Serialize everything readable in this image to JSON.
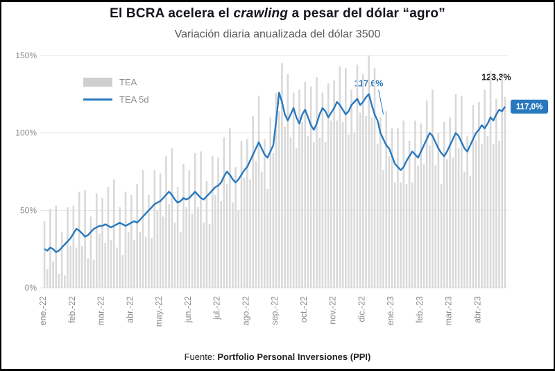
{
  "title": {
    "pre": "El BCRA acelera el ",
    "italic": "crawling",
    "post": " a pesar del dólar “agro”"
  },
  "subtitle": "Variación diaria anualizada del dólar 3500",
  "legend": {
    "bar_label": "TEA",
    "line_label": "TEA 5d"
  },
  "footer": {
    "prefix": "Fuente: ",
    "source": "Portfolio Personal Inversiones (PPI)"
  },
  "colors": {
    "line": "#2878be",
    "bar": "#d9d9d9",
    "grid": "#e4e4e4",
    "axis_text": "#8c8c8c",
    "annotation_dark": "#1a1a1a"
  },
  "chart_data": {
    "type": "bar",
    "combo": "bar+line",
    "title": "Variación diaria anualizada del dólar 3500",
    "xlabel": "",
    "ylabel": "",
    "ylim": [
      0,
      150
    ],
    "grid": true,
    "legend_position": "top-left-inside",
    "yticks": [
      {
        "v": 0,
        "label": "0%"
      },
      {
        "v": 50,
        "label": "50%"
      },
      {
        "v": 100,
        "label": "100%"
      },
      {
        "v": 150,
        "label": "150%"
      }
    ],
    "categories": [
      "ene.-22",
      "feb.-22",
      "mar.-22",
      "abr.-22",
      "may.-22",
      "jun.-22",
      "jul.-22",
      "ago.-22",
      "sep.-22",
      "oct.-22",
      "nov.-22",
      "dic.-22",
      "ene.-23",
      "feb.-23",
      "mar.-23",
      "abr.-23"
    ],
    "series": [
      {
        "name": "TEA",
        "type": "bar",
        "color": "#d9d9d9",
        "values": [
          43,
          12,
          51,
          17,
          53,
          9,
          36,
          8,
          52,
          27,
          53,
          26,
          62,
          27,
          63,
          19,
          46,
          18,
          61,
          35,
          58,
          29,
          65,
          31,
          70,
          26,
          52,
          21,
          62,
          36,
          60,
          31,
          67,
          36,
          76,
          33,
          60,
          32,
          76,
          50,
          74,
          46,
          85,
          54,
          90,
          42,
          65,
          36,
          80,
          52,
          76,
          48,
          87,
          52,
          88,
          42,
          69,
          41,
          85,
          60,
          84,
          56,
          97,
          67,
          103,
          55,
          78,
          50,
          95,
          71,
          96,
          70,
          111,
          82,
          124,
          75,
          96,
          64,
          110,
          87,
          126,
          114,
          145,
          104,
          138,
          97,
          126,
          90,
          128,
          107,
          133,
          98,
          130,
          94,
          136,
          97,
          126,
          94,
          132,
          108,
          134,
          108,
          143,
          107,
          142,
          99,
          128,
          100,
          144,
          113,
          138,
          111,
          150,
          110,
          142,
          93,
          110,
          76,
          114,
          85,
          103,
          68,
          103,
          68,
          108,
          67,
          95,
          68,
          108,
          79,
          106,
          80,
          121,
          92,
          128,
          79,
          100,
          67,
          107,
          83,
          110,
          84,
          125,
          90,
          124,
          75,
          98,
          72,
          118,
          95,
          120,
          93,
          128,
          98,
          140,
          93,
          122,
          95,
          136,
          123.3
        ]
      },
      {
        "name": "TEA 5d",
        "type": "line",
        "color": "#2878be",
        "values": [
          25,
          24,
          26,
          25,
          23,
          24,
          26,
          28,
          30,
          32,
          35,
          38,
          37,
          35,
          33,
          34,
          36,
          38,
          39,
          40,
          40,
          41,
          40,
          39,
          40,
          41,
          42,
          41,
          40,
          41,
          42,
          43,
          42,
          44,
          46,
          48,
          50,
          52,
          54,
          55,
          56,
          58,
          60,
          62,
          60,
          57,
          55,
          56,
          58,
          57,
          58,
          60,
          62,
          60,
          58,
          57,
          59,
          61,
          63,
          65,
          66,
          68,
          72,
          75,
          73,
          70,
          68,
          70,
          73,
          76,
          78,
          82,
          86,
          90,
          94,
          90,
          86,
          84,
          88,
          92,
          108,
          126,
          120,
          112,
          108,
          112,
          116,
          110,
          106,
          112,
          115,
          110,
          105,
          102,
          106,
          112,
          116,
          114,
          110,
          113,
          116,
          120,
          118,
          115,
          112,
          114,
          118,
          120,
          122,
          118,
          120,
          123,
          125,
          118,
          112,
          108,
          100,
          96,
          92,
          90,
          85,
          80,
          78,
          76,
          78,
          82,
          85,
          88,
          86,
          84,
          88,
          92,
          96,
          100,
          98,
          94,
          90,
          87,
          85,
          88,
          92,
          96,
          100,
          98,
          94,
          90,
          88,
          92,
          96,
          100,
          102,
          105,
          103,
          106,
          110,
          108,
          112,
          115,
          114,
          117
        ]
      }
    ],
    "annotations": [
      {
        "text": "117,6%",
        "variant": "plain",
        "index": 112,
        "value": 130,
        "color": "#2878be",
        "leader": true,
        "leader_index": 117,
        "leader_value": 112
      },
      {
        "text": "123,3%",
        "variant": "plain",
        "index": 156,
        "value": 134,
        "color": "#1a1a1a",
        "leader": false
      },
      {
        "text": "117,0%",
        "variant": "badge",
        "value": 117,
        "color": "#2878be"
      }
    ]
  }
}
